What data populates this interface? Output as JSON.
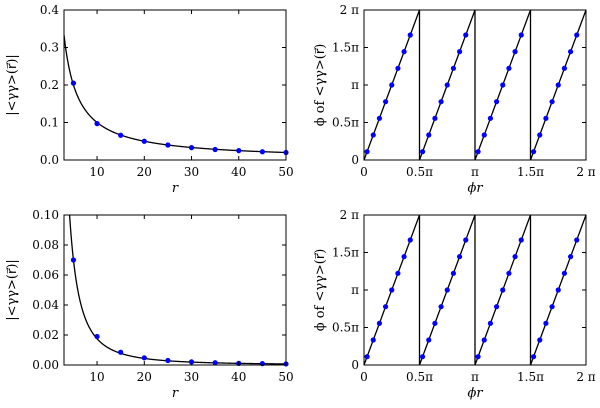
{
  "chart_data": [
    {
      "type": "line",
      "panel": "top-left",
      "ylabel": "|<γγ>(r⃗)|",
      "xlabel": "r",
      "xlim": [
        3,
        50
      ],
      "ylim": [
        0,
        0.4
      ],
      "xticks": [
        10,
        20,
        30,
        40,
        50
      ],
      "xtick_labels": [
        "10",
        "20",
        "30",
        "40",
        "50"
      ],
      "yticks": [
        0,
        0.1,
        0.2,
        0.3,
        0.4
      ],
      "ytick_labels": [
        "0.0",
        "0.1",
        "0.2",
        "0.3",
        "0.4"
      ],
      "curve": {
        "model": "a/r",
        "a": 1.0
      },
      "points": {
        "x": [
          5,
          10,
          15,
          20,
          25,
          30,
          35,
          40,
          45,
          50
        ],
        "y": [
          0.205,
          0.097,
          0.066,
          0.05,
          0.04,
          0.033,
          0.028,
          0.025,
          0.022,
          0.02
        ]
      },
      "point_color": "#0000ff",
      "line_color": "#000000",
      "grid": false
    },
    {
      "type": "line",
      "panel": "top-right",
      "ylabel": "ϕ of <γγ>(r⃗)",
      "xlabel": "ϕr",
      "xlim": [
        0,
        6.2832
      ],
      "ylim": [
        0,
        6.2832
      ],
      "xticks": [
        0,
        1.5708,
        3.1416,
        4.7124,
        6.2832
      ],
      "xtick_labels": [
        "0",
        "0.5π",
        "π",
        "1.5π",
        "2 π"
      ],
      "yticks": [
        0,
        1.5708,
        3.1416,
        4.7124,
        6.2832
      ],
      "ytick_labels": [
        "0",
        "0.5π",
        "π",
        "1.5π",
        "2 π"
      ],
      "curve": {
        "model": "sawtooth",
        "slope": 4,
        "period": 1.5708
      },
      "points": {
        "x": [
          0.0873,
          0.2618,
          0.4363,
          0.6109,
          0.7854,
          0.9599,
          1.1345,
          1.309,
          1.6581,
          1.8326,
          2.0071,
          2.1817,
          2.3562,
          2.5307,
          2.7053,
          2.8798,
          3.2289,
          3.4034,
          3.5779,
          3.7525,
          3.927,
          4.1015,
          4.2761,
          4.4506,
          4.7997,
          4.9742,
          5.1487,
          5.3233,
          5.4978,
          5.6723,
          5.8469,
          6.0214
        ],
        "y": [
          0.349,
          1.047,
          1.745,
          2.443,
          3.142,
          3.84,
          4.538,
          5.236,
          0.349,
          1.047,
          1.745,
          2.443,
          3.142,
          3.84,
          4.538,
          5.236,
          0.349,
          1.047,
          1.745,
          2.443,
          3.142,
          3.84,
          4.538,
          5.236,
          0.349,
          1.047,
          1.745,
          2.443,
          3.142,
          3.84,
          4.538,
          5.236
        ]
      },
      "point_color": "#0000ff",
      "line_color": "#000000",
      "grid": false
    },
    {
      "type": "line",
      "panel": "bottom-left",
      "ylabel": "|<γγ>(r⃗)|",
      "xlabel": "r",
      "xlim": [
        3,
        50
      ],
      "ylim": [
        0,
        0.1
      ],
      "xticks": [
        10,
        20,
        30,
        40,
        50
      ],
      "xtick_labels": [
        "10",
        "20",
        "30",
        "40",
        "50"
      ],
      "yticks": [
        0,
        0.02,
        0.04,
        0.06,
        0.08,
        0.1
      ],
      "ytick_labels": [
        "0.00",
        "0.02",
        "0.04",
        "0.06",
        "0.08",
        "0.10"
      ],
      "curve": {
        "model": "a/r^2",
        "a": 1.75
      },
      "points": {
        "x": [
          5,
          10,
          15,
          20,
          25,
          30,
          35,
          40,
          45,
          50
        ],
        "y": [
          0.07,
          0.019,
          0.0085,
          0.0048,
          0.003,
          0.0021,
          0.0015,
          0.0011,
          0.0009,
          0.0007
        ]
      },
      "point_color": "#0000ff",
      "line_color": "#000000",
      "grid": false
    },
    {
      "type": "line",
      "panel": "bottom-right",
      "ylabel": "ϕ of <γγ>(r⃗)",
      "xlabel": "ϕr",
      "xlim": [
        0,
        6.2832
      ],
      "ylim": [
        0,
        6.2832
      ],
      "xticks": [
        0,
        1.5708,
        3.1416,
        4.7124,
        6.2832
      ],
      "xtick_labels": [
        "0",
        "0.5π",
        "π",
        "1.5π",
        "2 π"
      ],
      "yticks": [
        0,
        1.5708,
        3.1416,
        4.7124,
        6.2832
      ],
      "ytick_labels": [
        "0",
        "0.5π",
        "π",
        "1.5π",
        "2 π"
      ],
      "curve": {
        "model": "sawtooth",
        "slope": 4,
        "period": 1.5708
      },
      "points": {
        "x": [
          0.0873,
          0.2618,
          0.4363,
          0.6109,
          0.7854,
          0.9599,
          1.1345,
          1.309,
          1.6581,
          1.8326,
          2.0071,
          2.1817,
          2.3562,
          2.5307,
          2.7053,
          2.8798,
          3.2289,
          3.4034,
          3.5779,
          3.7525,
          3.927,
          4.1015,
          4.2761,
          4.4506,
          4.7997,
          4.9742,
          5.1487,
          5.3233,
          5.4978,
          5.6723,
          5.8469,
          6.0214
        ],
        "y": [
          0.349,
          1.047,
          1.745,
          2.443,
          3.142,
          3.84,
          4.538,
          5.236,
          0.349,
          1.047,
          1.745,
          2.443,
          3.142,
          3.84,
          4.538,
          5.236,
          0.349,
          1.047,
          1.745,
          2.443,
          3.142,
          3.84,
          4.538,
          5.236,
          0.349,
          1.047,
          1.745,
          2.443,
          3.142,
          3.84,
          4.538,
          5.236
        ]
      },
      "point_color": "#0000ff",
      "line_color": "#000000",
      "grid": false
    }
  ]
}
